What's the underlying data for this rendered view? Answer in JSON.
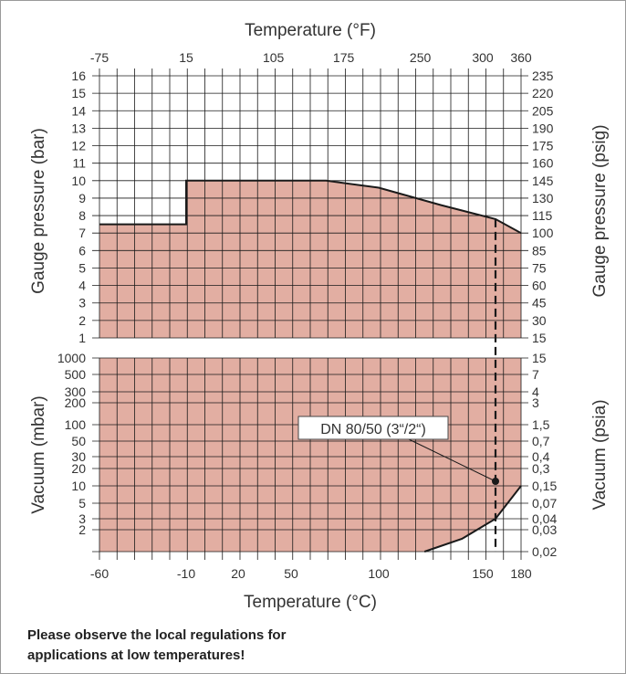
{
  "chart_data": {
    "type": "area",
    "colors": {
      "fill": "#e2aea2",
      "line": "#1a1a1a",
      "grid": "#1a1a1a",
      "text": "#333333"
    },
    "top_axis": {
      "label": "Temperature (°F)",
      "ticks": [
        "-75",
        "15",
        "105",
        "175",
        "250",
        "300",
        "360"
      ],
      "ticks_at_celsius": [
        -60,
        -10,
        40,
        80,
        120,
        150,
        180
      ]
    },
    "bottom_axis": {
      "label": "Temperature (°C)",
      "ticks": [
        -60,
        -10,
        20,
        50,
        100,
        150,
        180
      ]
    },
    "x_range_celsius": [
      -60,
      180
    ],
    "pressure_panel": {
      "left_label": "Gauge pressure (bar)",
      "right_label": "Gauge pressure (psig)",
      "ylim": [
        1,
        16
      ],
      "left_ticks": [
        "16",
        "15",
        "14",
        "13",
        "12",
        "11",
        "10",
        "9",
        "8",
        "7",
        "6",
        "5",
        "4",
        "3",
        "2",
        "1"
      ],
      "right_ticks": [
        "235",
        "220",
        "205",
        "190",
        "175",
        "160",
        "145",
        "130",
        "115",
        "100",
        "85",
        "75",
        "60",
        "45",
        "30",
        "15"
      ],
      "boundary": [
        [
          -60,
          7.5
        ],
        [
          -10,
          7.5
        ],
        [
          -10,
          10
        ],
        [
          70,
          10
        ],
        [
          100,
          9.6
        ],
        [
          130,
          8.6
        ],
        [
          160,
          7.8
        ],
        [
          180,
          7
        ]
      ]
    },
    "vacuum_panel": {
      "left_label": "Vacuum (mbar)",
      "right_label": "Vacuum (psia)",
      "left_ticks": [
        "1000",
        "500",
        "300",
        "200",
        "100",
        "50",
        "30",
        "20",
        "10",
        "5",
        "3",
        "2"
      ],
      "right_ticks": [
        "15",
        "7",
        "4",
        "3",
        "1,5",
        "0,7",
        "0,4",
        "0,3",
        "0,15",
        "0,07",
        "0,04",
        "0,03",
        "0,02"
      ],
      "boundary_mbar": [
        [
          122,
          1
        ],
        [
          140,
          1.5
        ],
        [
          160,
          3
        ],
        [
          180,
          10
        ]
      ]
    },
    "annotation": {
      "text": "DN 80/50 (3“/2“)",
      "point_temperature_c": 160,
      "point_mbar": 12
    },
    "marker_temperature_c": 160
  },
  "note": {
    "line1": "Please observe the local regulations for",
    "line2": "applications at low temperatures!"
  }
}
